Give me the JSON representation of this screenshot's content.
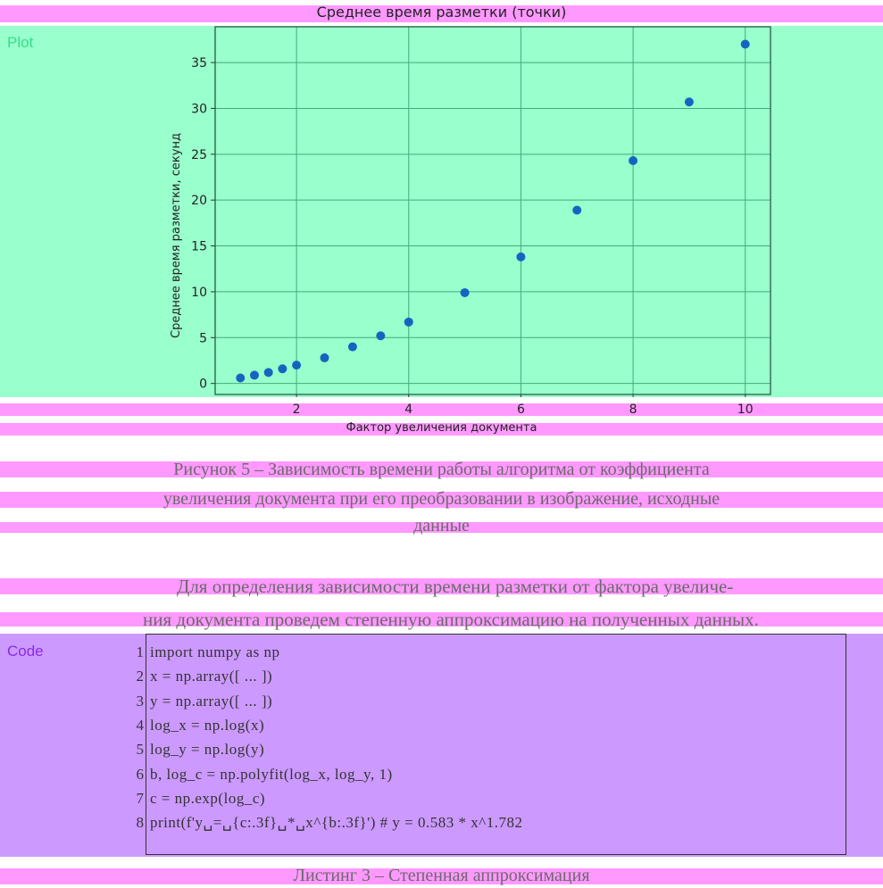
{
  "chart_data": {
    "type": "scatter",
    "title": "Среднее время разметки (точки)",
    "xlabel": "Фактор увеличения документа",
    "ylabel": "Среднее время разметки, секунд",
    "x": [
      1,
      1.25,
      1.5,
      1.75,
      2,
      2.5,
      3,
      3.5,
      4,
      5,
      6,
      7,
      8,
      9,
      10
    ],
    "y": [
      0.6,
      0.9,
      1.2,
      1.6,
      2.0,
      2.8,
      4.0,
      5.2,
      6.7,
      9.9,
      13.8,
      18.9,
      24.3,
      30.7,
      37.0
    ],
    "xlim": [
      0.55,
      10.45
    ],
    "ylim": [
      -1.2,
      38.9
    ],
    "xticks": [
      "2",
      "4",
      "6",
      "8",
      "10"
    ],
    "yticks": [
      "0",
      "5",
      "10",
      "15",
      "20",
      "25",
      "30",
      "35"
    ],
    "grid": true,
    "marker_color": "#1565c0",
    "grid_color": "#3fae7d"
  },
  "regions": {
    "plot_label": "Plot",
    "plot_label_color": "#33e08a",
    "code_label": "Code",
    "code_label_color": "#8a2be2"
  },
  "caption": {
    "lines": [
      "Рисунок 5 – Зависимость времени работы алгоритма от коэффициента",
      "увеличения документа при его преобразовании в изображение, исходные",
      "данные"
    ]
  },
  "paragraph": {
    "lines": [
      "Для определения зависимости времени разметки от фактора увеличе-",
      "ния документа проведем степенную аппроксимацию на полученных данных."
    ]
  },
  "code": {
    "line_numbers": [
      "1",
      "2",
      "3",
      "4",
      "5",
      "6",
      "7",
      "8"
    ],
    "lines": [
      "import numpy as np",
      "x = np.array([ ... ])",
      "y = np.array([ ... ])",
      "log_x = np.log(x)",
      "log_y = np.log(y)",
      "b, log_c = np.polyfit(log_x, log_y, 1)",
      "c = np.exp(log_c)",
      "print(f'y␣=␣{c:.3f}␣*␣x^{b:.3f}') # y = 0.583 * x^1.782"
    ]
  },
  "listing_caption": "Листинг 3 – Степенная аппроксимация",
  "colors": {
    "text_band": "#ff99ff",
    "plot_bg": "#99ffcc",
    "code_bg": "#cc99ff"
  }
}
